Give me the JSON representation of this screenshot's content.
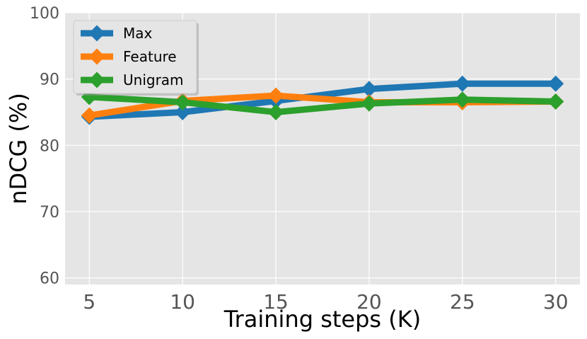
{
  "chart_data": {
    "type": "line",
    "title": "",
    "xlabel": "Training steps (K)",
    "ylabel": "nDCG (%)",
    "x": [
      5,
      10,
      15,
      20,
      25,
      30
    ],
    "x_ticks": [
      "5",
      "10",
      "15",
      "20",
      "25",
      "30"
    ],
    "xlim": [
      3.7,
      31.3
    ],
    "y_ticks": [
      "60",
      "70",
      "80",
      "90",
      "100"
    ],
    "ylim": [
      59,
      100
    ],
    "grid": true,
    "legend_position": "top-left",
    "series": [
      {
        "name": "Max",
        "color": "#1f77b4",
        "marker": "diamond",
        "values": [
          84.3,
          85.0,
          86.7,
          88.5,
          89.3,
          89.3
        ]
      },
      {
        "name": "Feature",
        "color": "#ff7f0e",
        "marker": "diamond",
        "values": [
          84.5,
          86.7,
          87.5,
          86.5,
          86.5,
          86.6
        ]
      },
      {
        "name": "Unigram",
        "color": "#2ca02c",
        "marker": "diamond",
        "values": [
          87.3,
          86.5,
          85.0,
          86.3,
          86.9,
          86.6
        ]
      }
    ]
  }
}
